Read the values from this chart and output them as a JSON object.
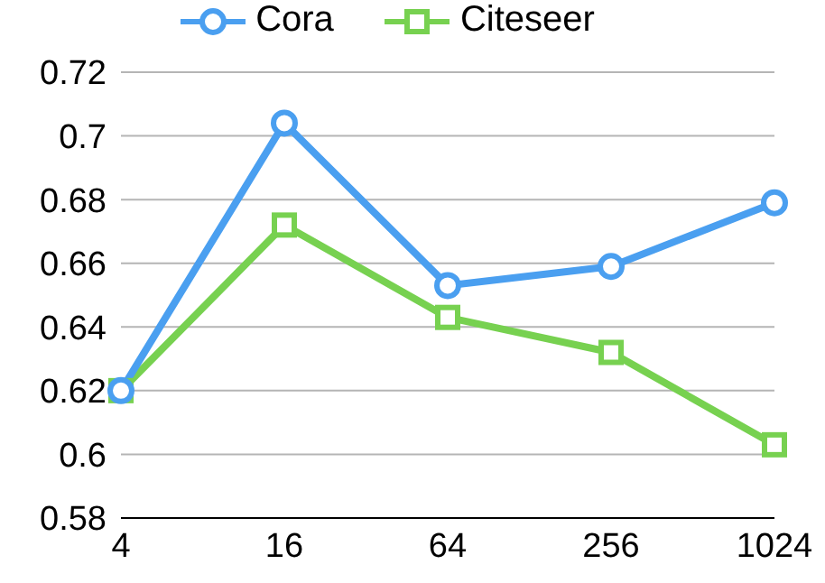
{
  "chart_data": {
    "type": "line",
    "categories": [
      "4",
      "16",
      "64",
      "256",
      "1024"
    ],
    "series": [
      {
        "name": "Cora",
        "color": "#4a9ff0",
        "values": [
          0.62,
          0.704,
          0.653,
          0.659,
          0.679
        ],
        "marker": "circle"
      },
      {
        "name": "Citeseer",
        "color": "#77d150",
        "values": [
          0.62,
          0.672,
          0.643,
          0.632,
          0.603
        ],
        "marker": "square"
      }
    ],
    "ylim": [
      0.58,
      0.72
    ],
    "yticks": [
      0.58,
      0.6,
      0.62,
      0.64,
      0.66,
      0.68,
      0.7,
      0.72
    ],
    "grid": "y",
    "legend": "top"
  }
}
